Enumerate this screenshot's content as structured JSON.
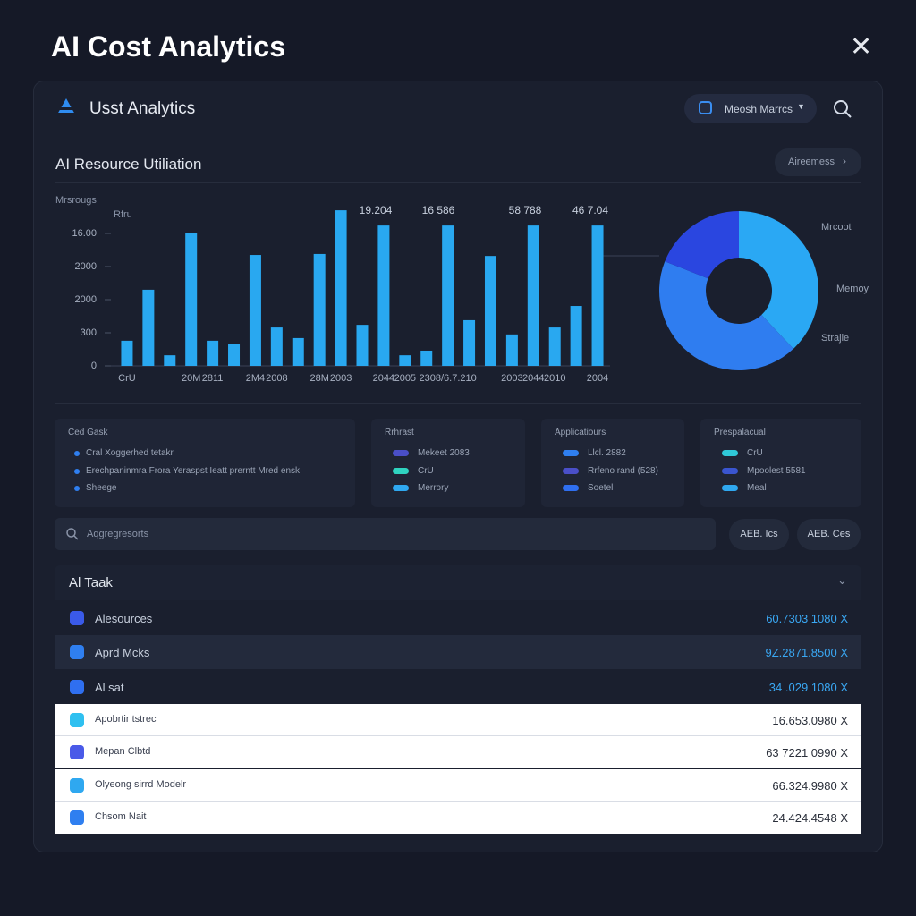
{
  "header": {
    "title": "AI Cost Analytics"
  },
  "panel": {
    "title": "Usst Analytics",
    "dropdown": "Meosh Marrcs",
    "section_title": "AI Resource Utiliation",
    "section_button": "Aireemess"
  },
  "chart_data": [
    {
      "type": "bar",
      "subtitle": "Mrsrougs",
      "y_label": "Rfru",
      "color": "#29a8f0",
      "categories": [
        "CrU",
        null,
        null,
        "20M",
        "2811",
        null,
        "2M4",
        "2008",
        null,
        "28M",
        "2003",
        null,
        "2044",
        "2005",
        null,
        "2308/6.7.210",
        null,
        null,
        "2003",
        "2044",
        "2010",
        null,
        "2004"
      ],
      "values": [
        0.76,
        2.3,
        0.32,
        4.0,
        0.76,
        0.65,
        3.35,
        1.16,
        0.84,
        3.38,
        4.7,
        1.24,
        4.24,
        0.32,
        0.46,
        4.24,
        1.38,
        3.32,
        0.95,
        4.24,
        1.16,
        1.81,
        4.24
      ],
      "ylim": [
        0,
        4.8
      ],
      "yticks": [
        0,
        {
          "value": 1,
          "label": "300"
        },
        {
          "value": 2,
          "label": "2000"
        },
        {
          "value": 3,
          "label": "2000"
        },
        {
          "value": 4,
          "label": "16.00"
        }
      ],
      "annotations": [
        "19.204",
        "16 586",
        "58 788",
        "46 7.04"
      ]
    },
    {
      "type": "pie",
      "categories": [
        "Mrcoot",
        "Memoy",
        "Strajie"
      ],
      "values": [
        38,
        43,
        19
      ],
      "colors": [
        "#2aa8f4",
        "#2f7df0",
        "#2a46e0"
      ]
    }
  ],
  "cards": [
    {
      "title": "Ced Gask",
      "items": [
        "Cral Xoggerhed tetakr",
        "Erechpaninmra Frora Yeraspst Ieatt prerntt Mred ensk",
        "Sheege"
      ]
    },
    {
      "title": "Rrhrast",
      "items": [
        "Mekeet 2083",
        "CrU",
        "Merrory"
      ]
    },
    {
      "title": "Applicatiours",
      "items": [
        "Llcl. 2882",
        "Rrfeno rand (528)",
        "Soetel"
      ]
    },
    {
      "title": "Prespalacual",
      "items": [
        "CrU",
        "Mpoolest 5581",
        "Meal"
      ]
    }
  ],
  "search": {
    "placeholder": "Aqgregresorts",
    "buttons": [
      "AEB. Ics",
      "AEB. Ces"
    ]
  },
  "table": {
    "title": "Al Taak",
    "rows": [
      [
        "Alesources",
        "60.7303 1080 X"
      ],
      [
        "Aprd Mcks",
        "9Z.2871.8500 X"
      ],
      [
        "Al sat",
        "34 .029 1080 X"
      ],
      [
        "Apobrtir tstrec",
        "16.653.0980 X"
      ],
      [
        "Mepan Clbtd",
        "63 7221 0990 X"
      ],
      [
        "Olyeong sirrd Modelr",
        "66.324.9980 X"
      ],
      [
        "Chsom Nait",
        "24.424.4548 X"
      ]
    ]
  }
}
